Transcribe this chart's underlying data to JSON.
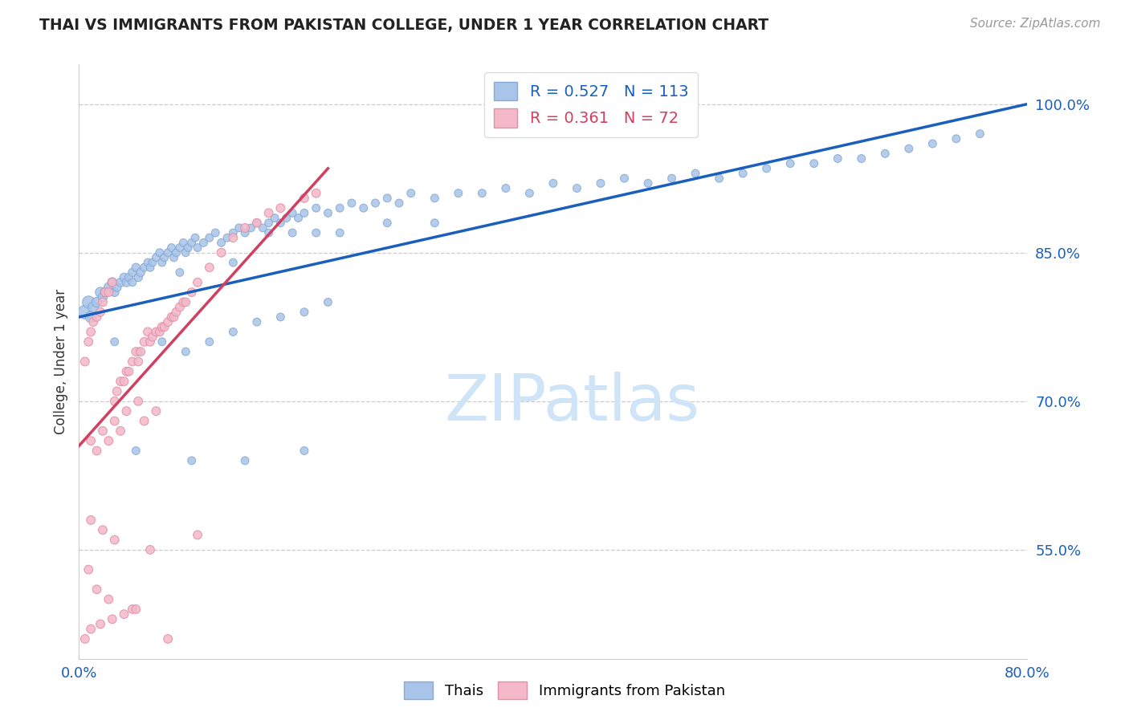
{
  "title": "THAI VS IMMIGRANTS FROM PAKISTAN COLLEGE, UNDER 1 YEAR CORRELATION CHART",
  "source": "Source: ZipAtlas.com",
  "ylabel": "College, Under 1 year",
  "ytick_labels": [
    "55.0%",
    "70.0%",
    "85.0%",
    "100.0%"
  ],
  "ytick_values": [
    0.55,
    0.7,
    0.85,
    1.0
  ],
  "xlim": [
    0.0,
    0.8
  ],
  "ylim": [
    0.44,
    1.04
  ],
  "legend_blue_R": "0.527",
  "legend_blue_N": "113",
  "legend_pink_R": "0.361",
  "legend_pink_N": "72",
  "blue_color": "#a8c4e8",
  "blue_edge_color": "#88aad4",
  "pink_color": "#f4b8c8",
  "pink_edge_color": "#e090a8",
  "blue_line_color": "#1a5fbb",
  "pink_line_color": "#d04060",
  "title_color": "#222222",
  "axis_label_color": "#333333",
  "tick_color": "#1a5fbb",
  "watermark_color": "#d0e4f8",
  "grid_color": "#cccccc",
  "background_color": "#ffffff",
  "blue_trendline_x": [
    0.0,
    0.8
  ],
  "blue_trendline_y": [
    0.785,
    1.0
  ],
  "pink_trendline_x": [
    0.0,
    0.21
  ],
  "pink_trendline_y": [
    0.655,
    0.935
  ],
  "blue_scatter_x": [
    0.005,
    0.008,
    0.01,
    0.012,
    0.015,
    0.018,
    0.02,
    0.022,
    0.025,
    0.028,
    0.03,
    0.032,
    0.035,
    0.038,
    0.04,
    0.042,
    0.045,
    0.048,
    0.05,
    0.052,
    0.055,
    0.058,
    0.06,
    0.062,
    0.065,
    0.068,
    0.07,
    0.072,
    0.075,
    0.078,
    0.08,
    0.082,
    0.085,
    0.088,
    0.09,
    0.092,
    0.095,
    0.098,
    0.1,
    0.105,
    0.11,
    0.115,
    0.12,
    0.125,
    0.13,
    0.135,
    0.14,
    0.145,
    0.15,
    0.155,
    0.16,
    0.165,
    0.17,
    0.175,
    0.18,
    0.185,
    0.19,
    0.2,
    0.21,
    0.22,
    0.23,
    0.24,
    0.25,
    0.26,
    0.27,
    0.28,
    0.3,
    0.32,
    0.34,
    0.36,
    0.38,
    0.4,
    0.42,
    0.44,
    0.46,
    0.48,
    0.5,
    0.52,
    0.54,
    0.56,
    0.58,
    0.6,
    0.62,
    0.64,
    0.66,
    0.68,
    0.7,
    0.72,
    0.74,
    0.76,
    0.03,
    0.05,
    0.07,
    0.09,
    0.11,
    0.13,
    0.15,
    0.17,
    0.19,
    0.21,
    0.048,
    0.095,
    0.14,
    0.19,
    0.045,
    0.085,
    0.13,
    0.18,
    0.16,
    0.2,
    0.22,
    0.26,
    0.3
  ],
  "blue_scatter_y": [
    0.79,
    0.8,
    0.785,
    0.795,
    0.8,
    0.81,
    0.805,
    0.81,
    0.815,
    0.82,
    0.81,
    0.815,
    0.82,
    0.825,
    0.82,
    0.825,
    0.83,
    0.835,
    0.825,
    0.83,
    0.835,
    0.84,
    0.835,
    0.84,
    0.845,
    0.85,
    0.84,
    0.845,
    0.85,
    0.855,
    0.845,
    0.85,
    0.855,
    0.86,
    0.85,
    0.855,
    0.86,
    0.865,
    0.855,
    0.86,
    0.865,
    0.87,
    0.86,
    0.865,
    0.87,
    0.875,
    0.87,
    0.875,
    0.88,
    0.875,
    0.88,
    0.885,
    0.88,
    0.885,
    0.89,
    0.885,
    0.89,
    0.895,
    0.89,
    0.895,
    0.9,
    0.895,
    0.9,
    0.905,
    0.9,
    0.91,
    0.905,
    0.91,
    0.91,
    0.915,
    0.91,
    0.92,
    0.915,
    0.92,
    0.925,
    0.92,
    0.925,
    0.93,
    0.925,
    0.93,
    0.935,
    0.94,
    0.94,
    0.945,
    0.945,
    0.95,
    0.955,
    0.96,
    0.965,
    0.97,
    0.76,
    0.75,
    0.76,
    0.75,
    0.76,
    0.77,
    0.78,
    0.785,
    0.79,
    0.8,
    0.65,
    0.64,
    0.64,
    0.65,
    0.82,
    0.83,
    0.84,
    0.87,
    0.87,
    0.87,
    0.87,
    0.88,
    0.88
  ],
  "blue_scatter_size": [
    150,
    120,
    100,
    90,
    80,
    80,
    70,
    70,
    70,
    70,
    60,
    60,
    60,
    60,
    60,
    55,
    55,
    55,
    55,
    55,
    50,
    50,
    50,
    50,
    50,
    50,
    50,
    50,
    50,
    50,
    50,
    50,
    50,
    50,
    50,
    50,
    50,
    50,
    50,
    50,
    50,
    50,
    50,
    50,
    50,
    50,
    50,
    50,
    50,
    50,
    50,
    50,
    50,
    50,
    50,
    50,
    50,
    50,
    50,
    50,
    50,
    50,
    50,
    50,
    50,
    50,
    50,
    50,
    50,
    50,
    50,
    50,
    50,
    50,
    50,
    50,
    50,
    50,
    50,
    50,
    50,
    50,
    50,
    50,
    50,
    50,
    50,
    50,
    50,
    50,
    50,
    50,
    50,
    50,
    50,
    50,
    50,
    50,
    50,
    50,
    50,
    50,
    50,
    50,
    50,
    50,
    50,
    50,
    50,
    50,
    50,
    50,
    50
  ],
  "pink_scatter_x": [
    0.005,
    0.008,
    0.01,
    0.012,
    0.015,
    0.018,
    0.02,
    0.022,
    0.025,
    0.028,
    0.03,
    0.032,
    0.035,
    0.038,
    0.04,
    0.042,
    0.045,
    0.048,
    0.05,
    0.052,
    0.055,
    0.058,
    0.06,
    0.062,
    0.065,
    0.068,
    0.07,
    0.072,
    0.075,
    0.078,
    0.08,
    0.082,
    0.085,
    0.088,
    0.09,
    0.095,
    0.1,
    0.11,
    0.12,
    0.13,
    0.14,
    0.15,
    0.16,
    0.17,
    0.19,
    0.2,
    0.01,
    0.02,
    0.03,
    0.04,
    0.05,
    0.015,
    0.025,
    0.035,
    0.055,
    0.065,
    0.01,
    0.02,
    0.03,
    0.06,
    0.1,
    0.008,
    0.015,
    0.025,
    0.045,
    0.005,
    0.01,
    0.018,
    0.028,
    0.038,
    0.048,
    0.075
  ],
  "pink_scatter_y": [
    0.74,
    0.76,
    0.77,
    0.78,
    0.785,
    0.79,
    0.8,
    0.81,
    0.81,
    0.82,
    0.7,
    0.71,
    0.72,
    0.72,
    0.73,
    0.73,
    0.74,
    0.75,
    0.74,
    0.75,
    0.76,
    0.77,
    0.76,
    0.765,
    0.77,
    0.77,
    0.775,
    0.775,
    0.78,
    0.785,
    0.785,
    0.79,
    0.795,
    0.8,
    0.8,
    0.81,
    0.82,
    0.835,
    0.85,
    0.865,
    0.875,
    0.88,
    0.89,
    0.895,
    0.905,
    0.91,
    0.66,
    0.67,
    0.68,
    0.69,
    0.7,
    0.65,
    0.66,
    0.67,
    0.68,
    0.69,
    0.58,
    0.57,
    0.56,
    0.55,
    0.565,
    0.53,
    0.51,
    0.5,
    0.49,
    0.46,
    0.47,
    0.475,
    0.48,
    0.485,
    0.49,
    0.46
  ],
  "pink_scatter_size": [
    60,
    60,
    60,
    60,
    60,
    60,
    60,
    60,
    60,
    60,
    60,
    60,
    60,
    60,
    60,
    60,
    60,
    60,
    60,
    60,
    60,
    60,
    60,
    60,
    60,
    60,
    60,
    60,
    60,
    60,
    60,
    60,
    60,
    60,
    60,
    60,
    60,
    60,
    60,
    60,
    60,
    60,
    60,
    60,
    60,
    60,
    60,
    60,
    60,
    60,
    60,
    60,
    60,
    60,
    60,
    60,
    60,
    60,
    60,
    60,
    60,
    60,
    60,
    60,
    60,
    60,
    60,
    60,
    60,
    60,
    60,
    60
  ]
}
